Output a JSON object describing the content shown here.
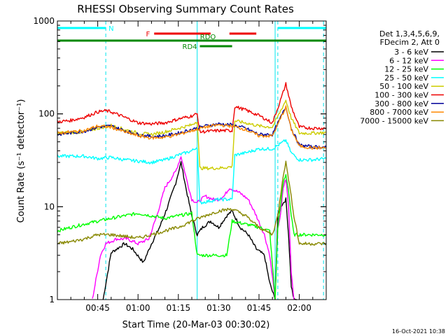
{
  "chart_data": {
    "type": "line",
    "title": "RHESSI Observing Summary Count Rates",
    "xlabel": "Start Time (20-Mar-03 00:30:02)",
    "ylabel": "Count Rate (s⁻¹ detector⁻¹)",
    "yscale": "log",
    "ylim": [
      1,
      1000
    ],
    "xlim_minutes": [
      0,
      100
    ],
    "x_tick_labels": [
      "00:45",
      "01:00",
      "01:15",
      "01:30",
      "01:45",
      "02:00"
    ],
    "x_tick_minutes": [
      15,
      30,
      45,
      60,
      75,
      90
    ],
    "y_tick_labels": [
      "1",
      "10",
      "100",
      "1000"
    ],
    "y_tick_values": [
      1,
      10,
      100,
      1000
    ],
    "timestamp": "16-Oct-2021 10:38",
    "legend_header": [
      "Det 1,3,4,5,6,9,",
      "FDecim 2, Att 0"
    ],
    "flag_bars": [
      {
        "label": "N",
        "color": "#00ffff",
        "segments": [
          [
            0,
            18
          ],
          [
            82,
            100
          ]
        ]
      },
      {
        "label": "F",
        "color": "#ee0000",
        "segments": [
          [
            36,
            57
          ],
          [
            64,
            74
          ]
        ]
      },
      {
        "label": "RDO",
        "color": "#008800",
        "segments": [
          [
            0,
            100
          ]
        ]
      },
      {
        "label": "RD4",
        "color": "#008800",
        "segments": [
          [
            53,
            65
          ]
        ]
      }
    ],
    "dashed_markers_minutes": [
      18,
      82,
      99
    ],
    "solid_markers_minutes": [
      52,
      81
    ],
    "series": [
      {
        "name": "3 - 6 keV",
        "color": "#000000",
        "x": [
          17,
          20,
          25,
          28,
          32,
          35,
          38,
          41,
          44,
          46,
          48,
          50,
          52,
          54,
          57,
          60,
          63,
          65,
          68,
          71,
          74,
          77,
          79,
          81,
          82,
          83,
          85,
          86,
          87,
          88,
          89
        ],
        "values": [
          1,
          3.2,
          4,
          3.5,
          2.5,
          4,
          6,
          10,
          18,
          30,
          15,
          8,
          5,
          6,
          7,
          6,
          8,
          9,
          6,
          5,
          3.5,
          3,
          1.5,
          1,
          8,
          10,
          12,
          5,
          1.4,
          1,
          1
        ]
      },
      {
        "name": "6 - 12 keV",
        "color": "#ff00ff",
        "x": [
          13,
          16,
          18,
          22,
          26,
          30,
          34,
          37,
          40,
          44,
          46,
          48,
          50,
          52,
          55,
          58,
          60,
          62,
          64,
          66,
          68,
          71,
          74,
          77,
          79,
          81,
          82,
          83,
          84,
          85,
          86,
          87,
          88
        ],
        "values": [
          1,
          3,
          4,
          4.5,
          4.5,
          4,
          4.5,
          8,
          16,
          24,
          35,
          20,
          12,
          11,
          13,
          12,
          12,
          13,
          16,
          15,
          14,
          12,
          8,
          5,
          3,
          1,
          6,
          8,
          16,
          20,
          10,
          2,
          1
        ]
      },
      {
        "name": "12 - 25 keV",
        "color": "#00ff00",
        "x": [
          0,
          5,
          10,
          15,
          20,
          25,
          30,
          35,
          40,
          45,
          50,
          52,
          55,
          60,
          63,
          65,
          70,
          75,
          79,
          81,
          82,
          84,
          85,
          86,
          87,
          88,
          90,
          95,
          100
        ],
        "values": [
          5.5,
          6,
          6.5,
          7,
          7.5,
          8,
          8.5,
          8,
          7.5,
          8,
          8.5,
          3,
          3,
          3,
          3,
          7,
          6.5,
          6,
          5.5,
          1,
          6,
          18,
          22,
          15,
          8,
          5,
          5,
          5,
          5
        ]
      },
      {
        "name": "25 - 50 keV",
        "color": "#00ffff",
        "x": [
          0,
          10,
          15,
          20,
          25,
          30,
          35,
          40,
          45,
          50,
          52,
          53,
          60,
          65,
          66,
          70,
          75,
          80,
          85,
          87,
          90,
          95,
          100
        ],
        "values": [
          35,
          35,
          33,
          34,
          32,
          31,
          30,
          32,
          36,
          40,
          44,
          11,
          12,
          12,
          36,
          38,
          42,
          42,
          52,
          38,
          32,
          32,
          33
        ]
      },
      {
        "name": "50 - 100 keV",
        "color": "#cccc00",
        "x": [
          0,
          10,
          15,
          20,
          25,
          30,
          35,
          40,
          45,
          50,
          52,
          53,
          60,
          65,
          66,
          70,
          75,
          80,
          85,
          87,
          90,
          95,
          100
        ],
        "values": [
          62,
          64,
          70,
          75,
          68,
          62,
          60,
          64,
          70,
          76,
          84,
          26,
          26,
          27,
          84,
          80,
          74,
          72,
          140,
          90,
          62,
          62,
          63
        ]
      },
      {
        "name": "100 - 300 keV",
        "color": "#ee0000",
        "x": [
          0,
          5,
          10,
          15,
          18,
          20,
          25,
          30,
          35,
          40,
          45,
          50,
          52,
          53,
          60,
          65,
          66,
          70,
          75,
          80,
          83,
          85,
          87,
          90,
          95,
          100
        ],
        "values": [
          82,
          85,
          92,
          105,
          108,
          105,
          92,
          80,
          78,
          80,
          88,
          95,
          100,
          64,
          66,
          66,
          120,
          110,
          96,
          80,
          140,
          210,
          120,
          72,
          70,
          70
        ]
      },
      {
        "name": "300 - 800 keV",
        "color": "#000099",
        "x": [
          0,
          10,
          15,
          20,
          25,
          30,
          35,
          40,
          45,
          50,
          55,
          60,
          65,
          70,
          75,
          80,
          85,
          87,
          90,
          95,
          100
        ],
        "values": [
          60,
          65,
          72,
          74,
          66,
          60,
          57,
          58,
          62,
          68,
          74,
          78,
          76,
          70,
          60,
          60,
          120,
          70,
          46,
          44,
          44
        ]
      },
      {
        "name": "800 - 7000 keV",
        "color": "#ff8800",
        "x": [
          0,
          10,
          15,
          20,
          25,
          30,
          35,
          40,
          45,
          50,
          55,
          60,
          65,
          70,
          75,
          80,
          85,
          87,
          90,
          95,
          100
        ],
        "values": [
          62,
          66,
          74,
          72,
          64,
          58,
          55,
          56,
          60,
          66,
          72,
          76,
          74,
          68,
          58,
          58,
          118,
          68,
          45,
          43,
          43
        ]
      },
      {
        "name": "7000 - 15000 keV",
        "color": "#888800",
        "x": [
          0,
          5,
          10,
          15,
          20,
          25,
          30,
          35,
          40,
          45,
          50,
          55,
          60,
          65,
          70,
          75,
          80,
          82,
          84,
          85,
          86,
          88,
          90,
          95,
          100
        ],
        "values": [
          4,
          4.2,
          4.5,
          5,
          5,
          4.8,
          4.6,
          5,
          5.5,
          6,
          7,
          8,
          9,
          9.5,
          8,
          6,
          5,
          8,
          22,
          30,
          20,
          8,
          4,
          4,
          4
        ]
      }
    ]
  }
}
